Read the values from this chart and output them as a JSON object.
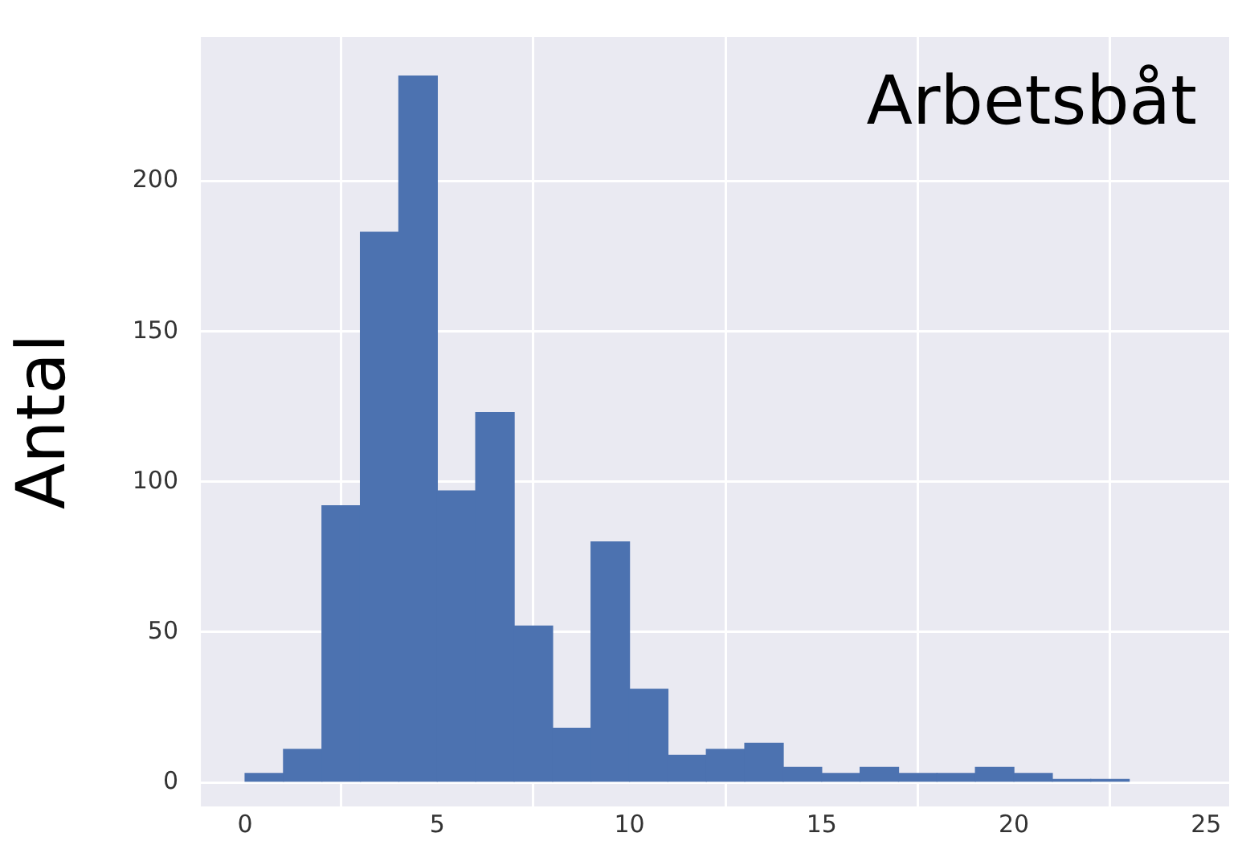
{
  "chart_data": {
    "type": "histogram",
    "title": "Arbetsbåt",
    "ylabel": "Antal",
    "bins": [
      0,
      1,
      2,
      3,
      4,
      5,
      6,
      7,
      8,
      9,
      10,
      11,
      12,
      13,
      14,
      15,
      16,
      17,
      18,
      19,
      20,
      21,
      22,
      23
    ],
    "values": [
      3,
      11,
      92,
      183,
      235,
      97,
      123,
      52,
      18,
      80,
      31,
      9,
      11,
      13,
      5,
      3,
      5,
      3,
      3,
      5,
      3,
      1,
      1
    ],
    "color": "#4c72b0",
    "xlim": [
      -1.15,
      25.6
    ],
    "ylim": [
      -8,
      248
    ],
    "xticks": [
      0,
      5,
      10,
      15,
      20,
      25
    ],
    "yticks": [
      0,
      50,
      100,
      150,
      200
    ],
    "grid": true
  }
}
